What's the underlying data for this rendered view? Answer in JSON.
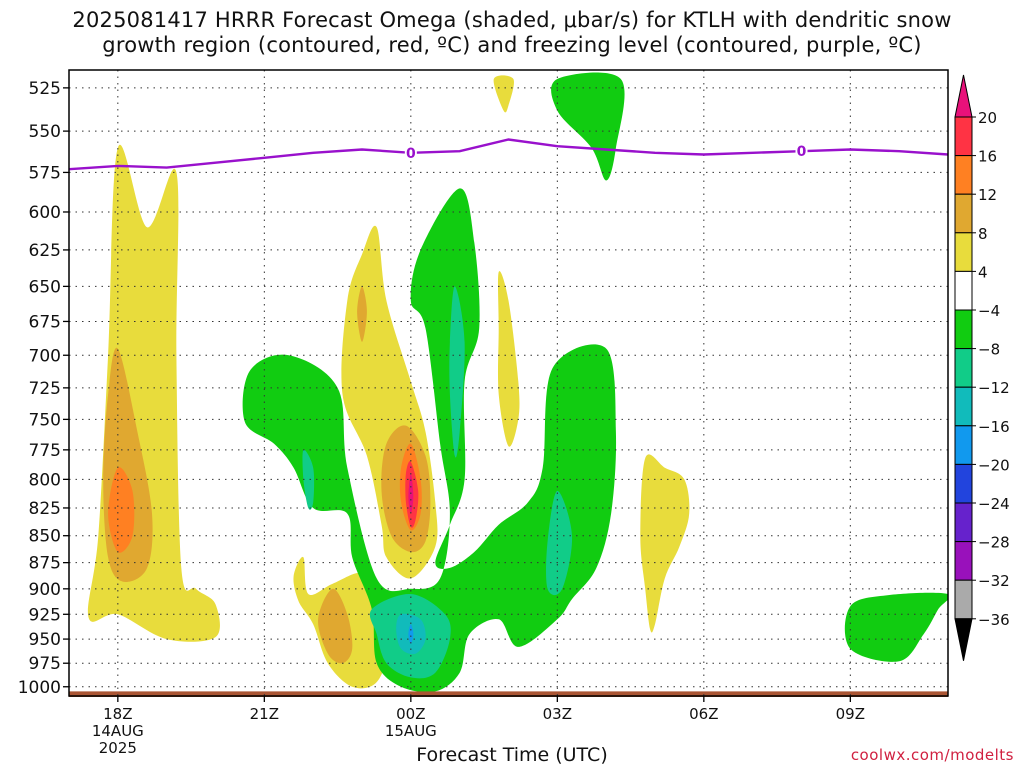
{
  "chart_data": {
    "type": "contour",
    "title": "2025081417 HRRR Forecast Omega (shaded, μbar/s) for KTLH with dendritic snow",
    "subtitle": "growth region (contoured, red, ºC) and freezing level (contoured, purple, ºC)",
    "xlabel": "Forecast Time (UTC)",
    "credit": "coolwx.com/modelts",
    "x_ticks": [
      {
        "label": "18Z",
        "sub": "14AUG",
        "sub2": "2025",
        "hour": 18
      },
      {
        "label": "21Z",
        "sub": "",
        "sub2": "",
        "hour": 21
      },
      {
        "label": "00Z",
        "sub": "15AUG",
        "sub2": "",
        "hour": 24
      },
      {
        "label": "03Z",
        "sub": "",
        "sub2": "",
        "hour": 27
      },
      {
        "label": "06Z",
        "sub": "",
        "sub2": "",
        "hour": 30
      },
      {
        "label": "09Z",
        "sub": "",
        "sub2": "",
        "hour": 33
      }
    ],
    "xlim": [
      17.0,
      35.0
    ],
    "y_ticks": [
      525,
      550,
      575,
      600,
      625,
      650,
      675,
      700,
      725,
      750,
      775,
      800,
      825,
      850,
      875,
      900,
      925,
      950,
      975,
      1000
    ],
    "ylim": [
      515,
      1010
    ],
    "y_scale": "log-pressure",
    "grid": true,
    "colorbar": {
      "labels": [
        "20",
        "16",
        "12",
        "8",
        "4",
        "−4",
        "−8",
        "−12",
        "−16",
        "−20",
        "−24",
        "−28",
        "−32",
        "−36"
      ],
      "colors": [
        "#ff3344",
        "#ff8022",
        "#e0a830",
        "#e8dc3c",
        "#ffffff",
        "#11cc11",
        "#11cc88",
        "#11bbbb",
        "#1199ee",
        "#2244dd",
        "#6622cc",
        "#9911bb",
        "#aaaaaa"
      ],
      "top_color": "#e8117a",
      "bottom_color": "#000000"
    },
    "freezing_level": {
      "label": "0",
      "color": "#9911cc",
      "points": [
        [
          17.0,
          573
        ],
        [
          18.0,
          571
        ],
        [
          19.0,
          572
        ],
        [
          20.0,
          569
        ],
        [
          21.0,
          566
        ],
        [
          22.0,
          563
        ],
        [
          23.0,
          561
        ],
        [
          24.0,
          563
        ],
        [
          25.0,
          562
        ],
        [
          26.0,
          555
        ],
        [
          27.0,
          559
        ],
        [
          28.0,
          561
        ],
        [
          29.0,
          563
        ],
        [
          30.0,
          564
        ],
        [
          31.0,
          563
        ],
        [
          32.0,
          562
        ],
        [
          33.0,
          561
        ],
        [
          34.0,
          562
        ],
        [
          35.0,
          564
        ]
      ],
      "label_hours": [
        24.0,
        32.0
      ]
    },
    "omega_regions": [
      {
        "level": "pos4",
        "color": "#e8dc3c",
        "points": [
          [
            17.4,
            928
          ],
          [
            17.6,
            850
          ],
          [
            17.8,
            700
          ],
          [
            18.0,
            560
          ],
          [
            18.6,
            610
          ],
          [
            19.2,
            575
          ],
          [
            19.2,
            700
          ],
          [
            19.3,
            880
          ],
          [
            19.6,
            900
          ],
          [
            20.0,
            915
          ],
          [
            20.0,
            948
          ],
          [
            19.0,
            950
          ],
          [
            18.0,
            925
          ]
        ]
      },
      {
        "level": "pos4",
        "color": "#e8dc3c",
        "points": [
          [
            23.0,
            628
          ],
          [
            22.7,
            660
          ],
          [
            22.6,
            730
          ],
          [
            23.1,
            780
          ],
          [
            23.4,
            840
          ],
          [
            23.5,
            870
          ],
          [
            24.0,
            890
          ],
          [
            24.5,
            860
          ],
          [
            24.5,
            820
          ],
          [
            24.3,
            760
          ],
          [
            24.0,
            720
          ],
          [
            23.5,
            660
          ],
          [
            23.3,
            610
          ]
        ]
      },
      {
        "level": "pos4",
        "color": "#e8dc3c",
        "points": [
          [
            21.6,
            888
          ],
          [
            21.8,
            870
          ],
          [
            21.9,
            905
          ],
          [
            22.4,
            895
          ],
          [
            23.0,
            885
          ],
          [
            23.2,
            910
          ],
          [
            23.5,
            960
          ],
          [
            23.3,
            995
          ],
          [
            22.8,
            1000
          ],
          [
            22.3,
            975
          ],
          [
            22.0,
            935
          ],
          [
            21.7,
            912
          ]
        ]
      },
      {
        "level": "pos4",
        "color": "#e8dc3c",
        "points": [
          [
            25.8,
            640
          ],
          [
            26.0,
            660
          ],
          [
            26.2,
            720
          ],
          [
            26.2,
            750
          ],
          [
            26.0,
            772
          ],
          [
            25.8,
            730
          ],
          [
            25.8,
            680
          ]
        ]
      },
      {
        "level": "pos4",
        "color": "#e8dc3c",
        "points": [
          [
            28.8,
            782
          ],
          [
            29.2,
            790
          ],
          [
            29.6,
            800
          ],
          [
            29.7,
            830
          ],
          [
            29.5,
            860
          ],
          [
            29.2,
            890
          ],
          [
            29.0,
            935
          ],
          [
            28.9,
            940
          ],
          [
            28.8,
            900
          ],
          [
            28.7,
            850
          ]
        ]
      },
      {
        "level": "pos4",
        "color": "#e8dc3c",
        "points": [
          [
            25.7,
            520
          ],
          [
            26.1,
            520
          ],
          [
            26.0,
            535
          ],
          [
            25.9,
            538
          ]
        ]
      },
      {
        "level": "pos8",
        "color": "#e0a830",
        "points": [
          [
            18.0,
            695
          ],
          [
            18.4,
            760
          ],
          [
            18.7,
            830
          ],
          [
            18.6,
            880
          ],
          [
            18.1,
            893
          ],
          [
            17.8,
            870
          ],
          [
            17.7,
            800
          ],
          [
            17.8,
            730
          ]
        ]
      },
      {
        "level": "pos8",
        "color": "#e0a830",
        "points": [
          [
            23.9,
            755
          ],
          [
            24.3,
            780
          ],
          [
            24.4,
            820
          ],
          [
            24.3,
            855
          ],
          [
            24.0,
            865
          ],
          [
            23.6,
            850
          ],
          [
            23.4,
            810
          ],
          [
            23.5,
            770
          ]
        ]
      },
      {
        "level": "pos8",
        "color": "#e0a830",
        "points": [
          [
            22.4,
            900
          ],
          [
            22.7,
            925
          ],
          [
            22.8,
            960
          ],
          [
            22.6,
            975
          ],
          [
            22.3,
            965
          ],
          [
            22.1,
            930
          ]
        ]
      },
      {
        "level": "pos8",
        "color": "#e0a830",
        "points": [
          [
            23.0,
            650
          ],
          [
            23.1,
            668
          ],
          [
            23.0,
            690
          ],
          [
            22.9,
            668
          ]
        ]
      },
      {
        "level": "pos12",
        "color": "#ff8022",
        "points": [
          [
            18.0,
            790
          ],
          [
            18.3,
            810
          ],
          [
            18.3,
            850
          ],
          [
            18.0,
            865
          ],
          [
            17.8,
            830
          ]
        ]
      },
      {
        "level": "pos12",
        "color": "#ff8022",
        "points": [
          [
            24.0,
            770
          ],
          [
            24.2,
            800
          ],
          [
            24.2,
            830
          ],
          [
            24.0,
            845
          ],
          [
            23.8,
            820
          ],
          [
            23.8,
            790
          ]
        ]
      },
      {
        "level": "pos16",
        "color": "#ff3344",
        "points": [
          [
            24.0,
            785
          ],
          [
            24.15,
            810
          ],
          [
            24.1,
            835
          ],
          [
            24.0,
            842
          ],
          [
            23.9,
            820
          ],
          [
            23.9,
            795
          ]
        ]
      },
      {
        "level": "pos20",
        "color": "#e8117a",
        "points": [
          [
            24.0,
            795
          ],
          [
            24.05,
            815
          ],
          [
            24.0,
            830
          ],
          [
            23.95,
            815
          ]
        ]
      },
      {
        "level": "neg4",
        "color": "#11cc11",
        "points": [
          [
            24.2,
            625
          ],
          [
            25.0,
            585
          ],
          [
            25.3,
            620
          ],
          [
            25.4,
            680
          ],
          [
            25.1,
            720
          ],
          [
            25.1,
            800
          ],
          [
            24.8,
            840
          ],
          [
            24.5,
            875
          ],
          [
            24.8,
            880
          ],
          [
            25.3,
            865
          ],
          [
            25.8,
            840
          ],
          [
            26.4,
            820
          ],
          [
            26.7,
            790
          ],
          [
            26.9,
            710
          ],
          [
            28.0,
            695
          ],
          [
            28.2,
            760
          ],
          [
            28.1,
            830
          ],
          [
            27.8,
            880
          ],
          [
            27.3,
            910
          ],
          [
            27.0,
            930
          ],
          [
            26.2,
            958
          ],
          [
            25.8,
            930
          ],
          [
            25.2,
            945
          ],
          [
            25.0,
            985
          ],
          [
            24.5,
            1005
          ],
          [
            23.8,
            1000
          ],
          [
            23.3,
            975
          ],
          [
            23.2,
            920
          ],
          [
            22.8,
            870
          ],
          [
            22.7,
            830
          ],
          [
            22.0,
            825
          ],
          [
            21.6,
            790
          ],
          [
            21.2,
            770
          ],
          [
            20.6,
            752
          ],
          [
            20.7,
            712
          ],
          [
            21.5,
            700
          ],
          [
            22.5,
            725
          ],
          [
            22.7,
            790
          ],
          [
            23.3,
            890
          ],
          [
            24.0,
            900
          ],
          [
            24.6,
            890
          ],
          [
            24.8,
            830
          ],
          [
            24.6,
            770
          ],
          [
            24.3,
            680
          ],
          [
            24.0,
            660
          ]
        ]
      },
      {
        "level": "neg4",
        "color": "#11cc11",
        "points": [
          [
            27.0,
            520
          ],
          [
            28.3,
            520
          ],
          [
            28.2,
            560
          ],
          [
            28.0,
            580
          ],
          [
            27.7,
            560
          ],
          [
            27.0,
            538
          ]
        ]
      },
      {
        "level": "neg4",
        "color": "#11cc11",
        "points": [
          [
            33.0,
            917
          ],
          [
            33.8,
            906
          ],
          [
            35.0,
            905
          ],
          [
            34.8,
            920
          ],
          [
            34.5,
            945
          ],
          [
            34.0,
            973
          ],
          [
            33.0,
            960
          ]
        ]
      },
      {
        "level": "neg8",
        "color": "#11cc88",
        "points": [
          [
            24.9,
            650
          ],
          [
            25.1,
            690
          ],
          [
            25.0,
            760
          ],
          [
            24.9,
            780
          ],
          [
            24.8,
            730
          ],
          [
            24.8,
            690
          ]
        ]
      },
      {
        "level": "neg8",
        "color": "#11cc88",
        "points": [
          [
            21.8,
            775
          ],
          [
            22.0,
            790
          ],
          [
            22.0,
            820
          ],
          [
            21.9,
            825
          ],
          [
            21.8,
            800
          ]
        ]
      },
      {
        "level": "neg8",
        "color": "#11cc88",
        "points": [
          [
            27.0,
            810
          ],
          [
            27.3,
            850
          ],
          [
            27.1,
            900
          ],
          [
            26.8,
            900
          ],
          [
            26.8,
            855
          ]
        ]
      },
      {
        "level": "neg8",
        "color": "#11cc88",
        "points": [
          [
            23.2,
            920
          ],
          [
            24.0,
            905
          ],
          [
            24.7,
            925
          ],
          [
            24.8,
            950
          ],
          [
            24.5,
            985
          ],
          [
            24.0,
            990
          ],
          [
            23.5,
            975
          ],
          [
            23.3,
            945
          ]
        ]
      },
      {
        "level": "neg12",
        "color": "#11bbbb",
        "points": [
          [
            23.8,
            925
          ],
          [
            24.2,
            930
          ],
          [
            24.3,
            950
          ],
          [
            24.1,
            965
          ],
          [
            23.8,
            960
          ],
          [
            23.7,
            940
          ]
        ]
      },
      {
        "level": "neg16",
        "color": "#1199ee",
        "points": [
          [
            24.0,
            935
          ],
          [
            24.05,
            945
          ],
          [
            24.0,
            955
          ],
          [
            23.95,
            945
          ]
        ]
      }
    ],
    "ground_band": {
      "color": "#aa5533",
      "top": 1005
    }
  }
}
